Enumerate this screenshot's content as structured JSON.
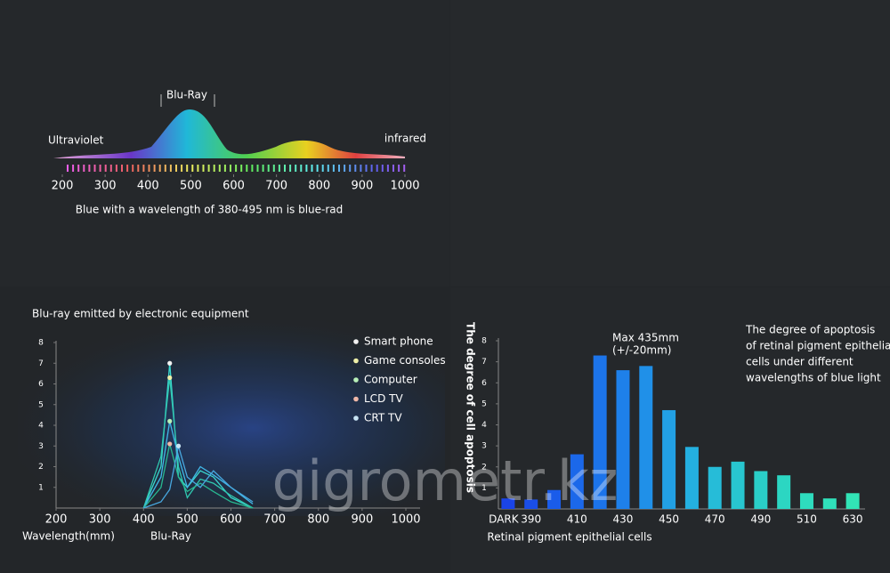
{
  "watermark": "gigrometr.kz",
  "chart_data": [
    {
      "type": "spectrum",
      "labels": {
        "peak": "Blu-Ray",
        "left": "Ultraviolet",
        "right": "infrared"
      },
      "caption": "Blue  with a wavelength of 380-495 nm is blue-rad",
      "xlim": [
        200,
        1000
      ],
      "xticks": [
        200,
        300,
        400,
        500,
        600,
        700,
        800,
        900,
        1000
      ]
    },
    {
      "type": "line",
      "title": "Blu-ray emitted by electronic equipment",
      "x_label": "Wavelength(mm)",
      "x_note": "Blu-Ray",
      "x": [
        400,
        440,
        460,
        480,
        500,
        530,
        560,
        600,
        650
      ],
      "series": [
        {
          "name": "Smart phone",
          "color": "#f2f2f2",
          "values": [
            0,
            2,
            7,
            1.5,
            1,
            1.8,
            1.5,
            0.5,
            0
          ]
        },
        {
          "name": "Game consoles",
          "color": "#f0f0a8",
          "values": [
            0,
            2.5,
            6.3,
            2,
            0.5,
            1.4,
            1.2,
            0.6,
            0
          ]
        },
        {
          "name": "Computer",
          "color": "#b8f0b8",
          "values": [
            0,
            1.5,
            4.2,
            2.5,
            1,
            2,
            1.6,
            1,
            0.2
          ]
        },
        {
          "name": "LCD TV",
          "color": "#f0b8a8",
          "values": [
            0,
            1,
            3.1,
            1.5,
            0.8,
            1.2,
            0.8,
            0.3,
            0
          ]
        },
        {
          "name": "CRT TV",
          "color": "#c8e4f4",
          "values": [
            0,
            0.3,
            0.9,
            3,
            1.5,
            1,
            1.8,
            1,
            0.3
          ]
        }
      ],
      "xlim": [
        200,
        1000
      ],
      "xticks": [
        200,
        300,
        400,
        500,
        600,
        700,
        800,
        900,
        1000
      ],
      "ylim": [
        0,
        8
      ],
      "yticks": [
        1,
        2,
        3,
        4,
        5,
        6,
        7,
        8
      ]
    },
    {
      "type": "bar",
      "y_label": "The degree of cell apoptosis",
      "x_label": "Retinal pigment epithelial cells",
      "annotation": [
        "Max 435mm",
        "(+/-20mm)"
      ],
      "side_text": [
        "The degree of apoptosis",
        "of retinal pigment epithelial",
        "cells under different",
        "wavelengths of blue light"
      ],
      "categories": [
        "DARK",
        "390",
        null,
        "410",
        null,
        "430",
        null,
        "450",
        null,
        "470",
        null,
        "490",
        null,
        "510",
        null,
        "630"
      ],
      "values": [
        0.5,
        0.45,
        0.9,
        2.6,
        7.3,
        6.6,
        6.8,
        4.7,
        2.95,
        2.0,
        2.25,
        1.8,
        1.6,
        0.75,
        0.5,
        0.75
      ],
      "colors": [
        "#1a44e8",
        "#1a4ee8",
        "#1a5cea",
        "#1b68ea",
        "#1c74ea",
        "#1e80ea",
        "#2090e8",
        "#22a0e4",
        "#24b0e0",
        "#26bcd8",
        "#28c6d0",
        "#2acec8",
        "#2cd6c2",
        "#2edcbe",
        "#30e0ba",
        "#32e4b6"
      ],
      "ylim": [
        0,
        8
      ],
      "yticks": [
        1,
        2,
        3,
        4,
        5,
        6,
        7,
        8
      ]
    }
  ]
}
